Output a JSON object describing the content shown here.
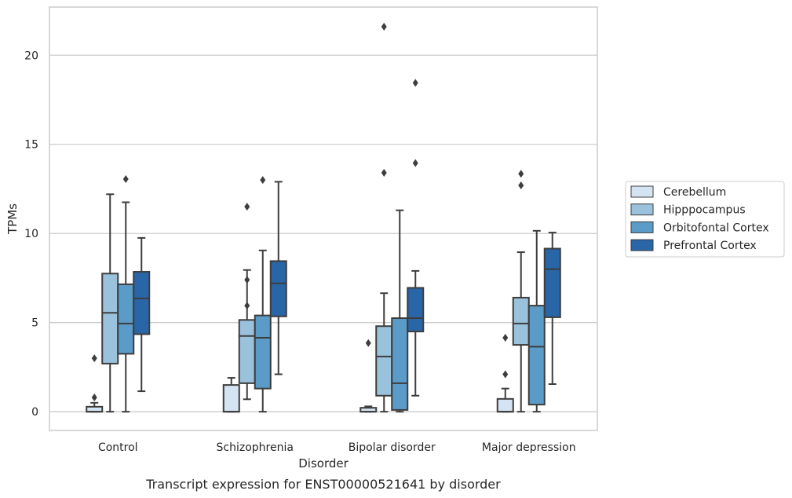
{
  "chart_data": {
    "type": "box",
    "caption": "Transcript expression for ENST00000521641 by disorder",
    "xlabel": "Disorder",
    "ylabel": "TPMs",
    "ylim": [
      -1.05,
      22.7
    ],
    "yticks": [
      0,
      5,
      10,
      15,
      20
    ],
    "grid": "horizontal",
    "legend_position": "right",
    "categories": [
      "Control",
      "Schizophrenia",
      "Bipolar disorder",
      "Major depression"
    ],
    "series": [
      {
        "name": "Cerebellum",
        "color": "#d5e4f2",
        "boxes": [
          {
            "whislo": 0,
            "q1": 0,
            "med": 0,
            "q3": 0.28,
            "whishi": 0.5,
            "fliers": [
              0.8,
              3.0
            ]
          },
          {
            "whislo": 0,
            "q1": 0,
            "med": 0,
            "q3": 1.5,
            "whishi": 1.9,
            "fliers": []
          },
          {
            "whislo": 0,
            "q1": 0,
            "med": 0,
            "q3": 0.22,
            "whishi": 0.3,
            "fliers": [
              3.85
            ]
          },
          {
            "whislo": 0,
            "q1": 0,
            "med": 0,
            "q3": 0.72,
            "whishi": 1.3,
            "fliers": [
              2.1,
              4.15
            ]
          }
        ]
      },
      {
        "name": "Hipppocampus",
        "color": "#9ac2dd",
        "boxes": [
          {
            "whislo": 0,
            "q1": 2.7,
            "med": 5.55,
            "q3": 7.75,
            "whishi": 12.2,
            "fliers": []
          },
          {
            "whislo": 0.7,
            "q1": 1.6,
            "med": 4.25,
            "q3": 5.15,
            "whishi": 7.95,
            "fliers": [
              11.5,
              5.95,
              7.4
            ]
          },
          {
            "whislo": 0,
            "q1": 0.9,
            "med": 3.1,
            "q3": 4.8,
            "whishi": 6.65,
            "fliers": [
              13.4,
              21.6
            ]
          },
          {
            "whislo": 0,
            "q1": 3.75,
            "med": 4.95,
            "q3": 6.4,
            "whishi": 8.95,
            "fliers": [
              12.7,
              13.35
            ]
          }
        ]
      },
      {
        "name": "Orbitofontal Cortex",
        "color": "#5b9bc8",
        "boxes": [
          {
            "whislo": 0,
            "q1": 3.25,
            "med": 4.95,
            "q3": 7.15,
            "whishi": 11.75,
            "fliers": [
              13.05
            ]
          },
          {
            "whislo": 0,
            "q1": 1.3,
            "med": 4.15,
            "q3": 5.4,
            "whishi": 9.05,
            "fliers": [
              13.0
            ]
          },
          {
            "whislo": 0,
            "q1": 0.1,
            "med": 1.6,
            "q3": 5.25,
            "whishi": 11.3,
            "fliers": []
          },
          {
            "whislo": 0,
            "q1": 0.4,
            "med": 3.65,
            "q3": 5.95,
            "whishi": 10.15,
            "fliers": []
          }
        ]
      },
      {
        "name": "Prefrontal Cortex",
        "color": "#2966a8",
        "boxes": [
          {
            "whislo": 1.15,
            "q1": 4.35,
            "med": 6.35,
            "q3": 7.85,
            "whishi": 9.75,
            "fliers": []
          },
          {
            "whislo": 2.1,
            "q1": 5.35,
            "med": 7.2,
            "q3": 8.45,
            "whishi": 12.9,
            "fliers": []
          },
          {
            "whislo": 0.9,
            "q1": 4.5,
            "med": 5.25,
            "q3": 6.95,
            "whishi": 7.9,
            "fliers": [
              13.95,
              18.45
            ]
          },
          {
            "whislo": 1.55,
            "q1": 5.3,
            "med": 8.0,
            "q3": 9.15,
            "whishi": 10.05,
            "fliers": []
          }
        ]
      }
    ]
  }
}
